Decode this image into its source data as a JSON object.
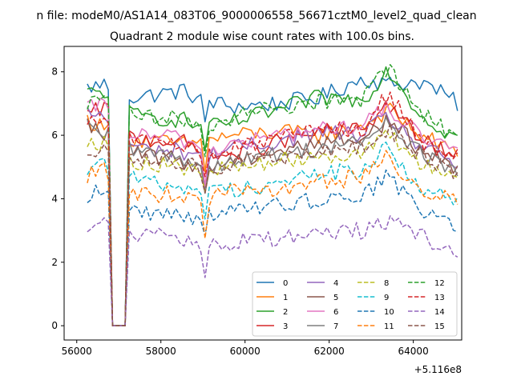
{
  "chart_data": {
    "type": "line",
    "suptitle": "n file: modeM0/AS1A14_083T06_9000006558_56671cztM0_level2_quad_clean",
    "title": "Quadrant 2 module wise count rates with 100.0s bins.",
    "xlabel": "",
    "ylabel": "",
    "x_offset_label": "+5.116e8",
    "xlim": [
      55700,
      65150
    ],
    "ylim": [
      -0.45,
      8.8
    ],
    "xticks": [
      56000,
      58000,
      60000,
      62000,
      64000
    ],
    "yticks": [
      0,
      2,
      4,
      6,
      8
    ],
    "legend_position": "lower-right",
    "legend_columns": 4,
    "x_start": 56250,
    "x_step": 100,
    "x_end": 65050,
    "gap": {
      "x": [
        56850,
        57150
      ],
      "value": 0
    },
    "series": [
      {
        "name": "0",
        "color": "#1f77b4",
        "dash": "solid",
        "levels": [
          7.5,
          7.6,
          7.2,
          7.4,
          7.1,
          6.9,
          7.0,
          7.2,
          7.8,
          7.6,
          7.7,
          7.0
        ]
      },
      {
        "name": "1",
        "color": "#ff7f0e",
        "dash": "solid",
        "levels": [
          6.5,
          6.2,
          5.9,
          5.7,
          5.8,
          6.0,
          6.1,
          6.0,
          6.3,
          6.8,
          6.0,
          5.4
        ]
      },
      {
        "name": "2",
        "color": "#2ca02c",
        "dash": "solid",
        "levels": [
          7.3,
          7.4,
          6.6,
          6.5,
          6.2,
          6.4,
          6.8,
          7.2,
          7.1,
          8.1,
          6.6,
          5.9
        ]
      },
      {
        "name": "3",
        "color": "#d62728",
        "dash": "solid",
        "levels": [
          6.6,
          6.9,
          5.9,
          5.8,
          5.3,
          5.4,
          5.8,
          6.1,
          6.2,
          7.0,
          5.8,
          5.3
        ]
      },
      {
        "name": "4",
        "color": "#9467bd",
        "dash": "solid",
        "levels": [
          6.7,
          6.6,
          5.6,
          5.5,
          5.4,
          5.6,
          5.8,
          6.1,
          6.0,
          6.6,
          5.6,
          5.1
        ]
      },
      {
        "name": "5",
        "color": "#8c564b",
        "dash": "solid",
        "levels": [
          6.3,
          6.1,
          5.4,
          5.2,
          5.0,
          5.2,
          5.5,
          5.8,
          5.9,
          6.5,
          5.5,
          5.0
        ]
      },
      {
        "name": "6",
        "color": "#e377c2",
        "dash": "solid",
        "levels": [
          6.8,
          7.0,
          6.0,
          5.9,
          5.5,
          5.7,
          6.0,
          6.2,
          6.3,
          6.9,
          5.9,
          5.4
        ]
      },
      {
        "name": "7",
        "color": "#7f7f7f",
        "dash": "solid",
        "levels": [
          6.2,
          6.0,
          5.5,
          5.3,
          5.0,
          5.2,
          5.4,
          5.6,
          5.8,
          6.4,
          5.4,
          4.9
        ]
      },
      {
        "name": "8",
        "color": "#bcbd22",
        "dash": "dashed",
        "levels": [
          5.9,
          5.7,
          5.2,
          5.0,
          4.8,
          5.0,
          5.2,
          5.4,
          5.4,
          6.0,
          5.1,
          4.7
        ]
      },
      {
        "name": "9",
        "color": "#17becf",
        "dash": "dashed",
        "levels": [
          5.0,
          5.2,
          4.6,
          4.4,
          4.2,
          4.3,
          4.5,
          4.8,
          4.9,
          5.6,
          4.3,
          3.9
        ]
      },
      {
        "name": "10",
        "color": "#1f77b4",
        "dash": "dashed",
        "levels": [
          4.1,
          4.3,
          3.6,
          3.5,
          3.4,
          3.6,
          3.8,
          4.0,
          4.1,
          4.7,
          3.6,
          3.2
        ]
      },
      {
        "name": "11",
        "color": "#ff7f0e",
        "dash": "dashed",
        "levels": [
          4.7,
          4.9,
          4.2,
          4.1,
          4.0,
          4.2,
          4.3,
          4.5,
          4.7,
          5.3,
          4.3,
          3.9
        ]
      },
      {
        "name": "12",
        "color": "#2ca02c",
        "dash": "dashed",
        "levels": [
          7.0,
          7.2,
          6.6,
          6.5,
          6.3,
          6.6,
          6.9,
          7.1,
          7.1,
          8.2,
          6.7,
          5.9
        ]
      },
      {
        "name": "13",
        "color": "#d62728",
        "dash": "dashed",
        "levels": [
          6.5,
          6.7,
          5.8,
          5.7,
          5.4,
          5.6,
          5.9,
          6.1,
          6.2,
          7.3,
          5.8,
          5.2
        ]
      },
      {
        "name": "14",
        "color": "#9467bd",
        "dash": "dashed",
        "levels": [
          3.1,
          3.2,
          2.9,
          2.7,
          2.5,
          2.6,
          2.8,
          2.9,
          3.0,
          3.3,
          2.8,
          2.3
        ]
      },
      {
        "name": "15",
        "color": "#8c564b",
        "dash": "dashed",
        "levels": [
          5.5,
          5.7,
          5.3,
          5.1,
          4.9,
          5.1,
          5.3,
          5.5,
          5.6,
          6.2,
          5.3,
          4.8
        ]
      }
    ],
    "level_knots_x": [
      56250,
      56650,
      57350,
      58500,
      59050,
      59700,
      60800,
      61800,
      62800,
      63400,
      64200,
      65050
    ]
  }
}
